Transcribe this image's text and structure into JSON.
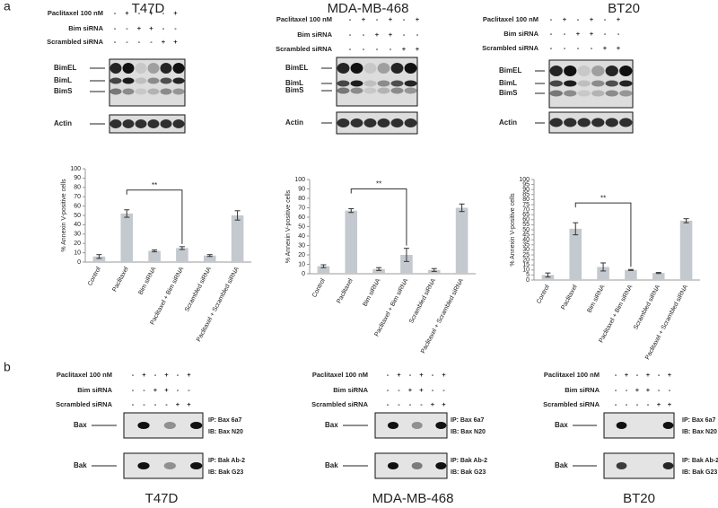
{
  "panel_a": {
    "label": "a",
    "blots": [
      {
        "title": "T47D",
        "conditions": [
          {
            "label": "Paclitaxel 100 nM",
            "signs": [
              "-",
              "+",
              "-",
              "+",
              "-",
              "+"
            ]
          },
          {
            "label": "Bim siRNA",
            "signs": [
              "-",
              "-",
              "+",
              "+",
              "-",
              "-"
            ]
          },
          {
            "label": "Scrambled siRNA",
            "signs": [
              "-",
              "-",
              "-",
              "-",
              "+",
              "+"
            ]
          }
        ],
        "bands": [
          "BimEL",
          "BimL",
          "BimS"
        ],
        "loading": "Actin"
      },
      {
        "title": "MDA-MB-468",
        "conditions": [
          {
            "label": "Paclitaxel 100 nM",
            "signs": [
              "-",
              "+",
              "-",
              "+",
              "-",
              "+"
            ]
          },
          {
            "label": "Bim siRNA",
            "signs": [
              "-",
              "-",
              "+",
              "+",
              "-",
              "-"
            ]
          },
          {
            "label": "Scrambled siRNA",
            "signs": [
              "-",
              "-",
              "-",
              "-",
              "+",
              "+"
            ]
          }
        ],
        "bands": [
          "BimEL",
          "BimL",
          "BimS"
        ],
        "loading": "Actin"
      },
      {
        "title": "BT20",
        "conditions": [
          {
            "label": "Paclitaxel 100 nM",
            "signs": [
              "-",
              "+",
              "-",
              "+",
              "-",
              "+"
            ]
          },
          {
            "label": "Bim siRNA",
            "signs": [
              "-",
              "-",
              "+",
              "+",
              "-",
              "-"
            ]
          },
          {
            "label": "Scrambled siRNA",
            "signs": [
              "-",
              "-",
              "-",
              "-",
              "+",
              "+"
            ]
          }
        ],
        "bands": [
          "BimEL",
          "BimL",
          "BimS"
        ],
        "loading": "Actin"
      }
    ]
  },
  "chart_data": [
    {
      "type": "bar",
      "ylabel": "% Annexin V-positive cells",
      "annotation": "**",
      "color": "#c3c9ce",
      "categories": [
        "Control",
        "Paclitaxel",
        "Bim siRNA",
        "Paclitaxel + Bim siRNA",
        "Scrambled siRNA",
        "Paclitaxel + Scrambled siRNA"
      ],
      "values": [
        6,
        52,
        12,
        15,
        7,
        50
      ],
      "errors": [
        2,
        4,
        1,
        1.5,
        1,
        5
      ],
      "ylim": [
        0,
        100
      ],
      "yticks": [
        0,
        10,
        20,
        30,
        40,
        50,
        60,
        70,
        80,
        90,
        100
      ]
    },
    {
      "type": "bar",
      "ylabel": "% Annexin V-positive cells",
      "annotation": "**",
      "color": "#c3c9ce",
      "categories": [
        "Control",
        "Paclitaxel",
        "Bim siRNA",
        "Paclitaxel + Bim siRNA",
        "Scrambled siRNA",
        "Paclitaxel + Scrambled siRNA"
      ],
      "values": [
        8,
        67,
        5,
        20,
        4,
        70
      ],
      "errors": [
        1.5,
        2,
        1.5,
        7,
        1.5,
        4
      ],
      "ylim": [
        0,
        100
      ],
      "yticks": [
        0,
        10,
        20,
        30,
        40,
        50,
        60,
        70,
        80,
        90,
        100
      ]
    },
    {
      "type": "bar",
      "ylabel": "% Annexin V-positive cells",
      "annotation": "**",
      "color": "#c3c9ce",
      "categories": [
        "Control",
        "Paclitaxel",
        "Bim siRNA",
        "Paclitaxel + Bim siRNA",
        "Scrambled siRNA",
        "Paclitaxel + Scrambled siRNA"
      ],
      "values": [
        5,
        51,
        13,
        10,
        7,
        59
      ],
      "errors": [
        2,
        6,
        4,
        0.5,
        0.5,
        2
      ],
      "ylim": [
        0,
        100
      ],
      "yticks": [
        0,
        5,
        10,
        15,
        20,
        25,
        30,
        35,
        40,
        45,
        50,
        55,
        60,
        65,
        70,
        75,
        80,
        85,
        90,
        95,
        100
      ]
    }
  ],
  "panel_b": {
    "label": "b",
    "blots": [
      {
        "title": "T47D",
        "conditions": [
          {
            "label": "Paclitaxel 100 nM",
            "signs": [
              "-",
              "+",
              "-",
              "+",
              "-",
              "+"
            ]
          },
          {
            "label": "Bim siRNA",
            "signs": [
              "-",
              "-",
              "+",
              "+",
              "-",
              "-"
            ]
          },
          {
            "label": "Scrambled siRNA",
            "signs": [
              "-",
              "-",
              "-",
              "-",
              "+",
              "+"
            ]
          }
        ],
        "rows": [
          {
            "band": "Bax",
            "ip": "IP: Bax 6a7",
            "ib": "IB: Bax N20"
          },
          {
            "band": "Bak",
            "ip": "IP: Bak Ab-2",
            "ib": "IB: Bak G23"
          }
        ]
      },
      {
        "title": "MDA-MB-468",
        "conditions": [
          {
            "label": "Paclitaxel 100 nM",
            "signs": [
              "-",
              "+",
              "-",
              "+",
              "-",
              "+"
            ]
          },
          {
            "label": "Bim siRNA",
            "signs": [
              "-",
              "-",
              "+",
              "+",
              "-",
              "-"
            ]
          },
          {
            "label": "Scrambled siRNA",
            "signs": [
              "-",
              "-",
              "-",
              "-",
              "+",
              "+"
            ]
          }
        ],
        "rows": [
          {
            "band": "Bax",
            "ip": "IP: Bax 6a7",
            "ib": "IB: Bax N20"
          },
          {
            "band": "Bak",
            "ip": "IP: Bak Ab-2",
            "ib": "IB: Bak G23"
          }
        ]
      },
      {
        "title": "BT20",
        "conditions": [
          {
            "label": "Paclitaxel 100 nM",
            "signs": [
              "-",
              "+",
              "-",
              "+",
              "-",
              "+"
            ]
          },
          {
            "label": "Bim siRNA",
            "signs": [
              "-",
              "-",
              "+",
              "+",
              "-",
              "-"
            ]
          },
          {
            "label": "Scrambled siRNA",
            "signs": [
              "-",
              "-",
              "-",
              "-",
              "+",
              "+"
            ]
          }
        ],
        "rows": [
          {
            "band": "Bax",
            "ip": "IP: Bax 6a7",
            "ib": "IB: Bax N20"
          },
          {
            "band": "Bak",
            "ip": "IP: Bak Ab-2",
            "ib": "IB: Bak G23"
          }
        ]
      }
    ]
  }
}
